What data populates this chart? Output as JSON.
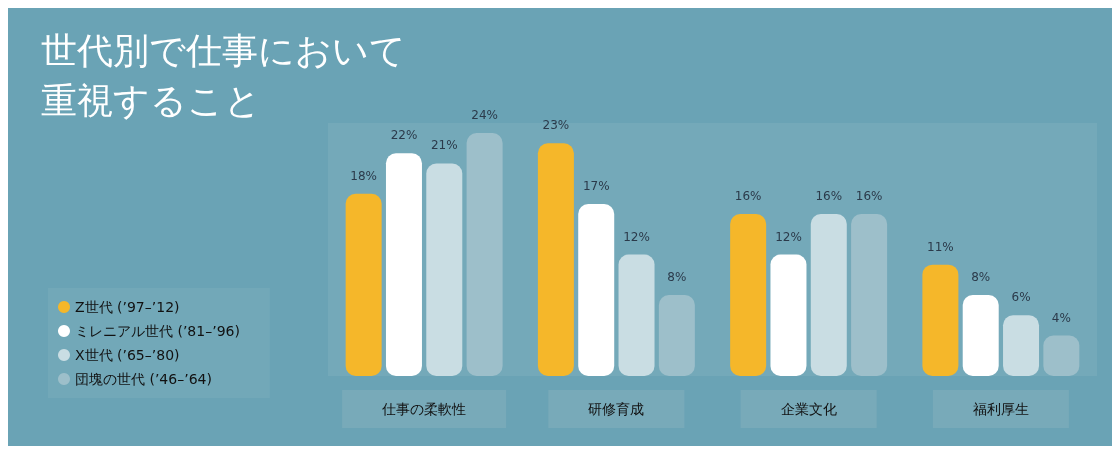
{
  "chart_data": {
    "type": "bar",
    "title": "世代別で仕事において重視すること",
    "categories": [
      "仕事の柔軟性",
      "研修育成",
      "企業文化",
      "福利厚生"
    ],
    "series": [
      {
        "name": "Z世代 (’97–’12)",
        "color": "#f5b72a",
        "values": [
          18,
          23,
          16,
          11
        ],
        "value_labels": [
          "18%",
          "23%",
          "16%",
          "11%"
        ]
      },
      {
        "name": "ミレニアル世代 (’81–’96)",
        "color": "#ffffff",
        "values": [
          22,
          17,
          12,
          8
        ],
        "value_labels": [
          "22%",
          "17%",
          "12%",
          "8%"
        ]
      },
      {
        "name": "X世代 (’65–’80)",
        "color": "#c9dde3",
        "values": [
          21,
          12,
          16,
          6
        ],
        "value_labels": [
          "21%",
          "12%",
          "16%",
          "6%"
        ]
      },
      {
        "name": "団塊の世代 (’46–’64)",
        "color": "#9dbfca",
        "values": [
          24,
          8,
          16,
          4
        ],
        "value_labels": [
          "24%",
          "8%",
          "16%",
          "4%"
        ]
      }
    ],
    "legend": "left",
    "tick_labels": "x"
  }
}
